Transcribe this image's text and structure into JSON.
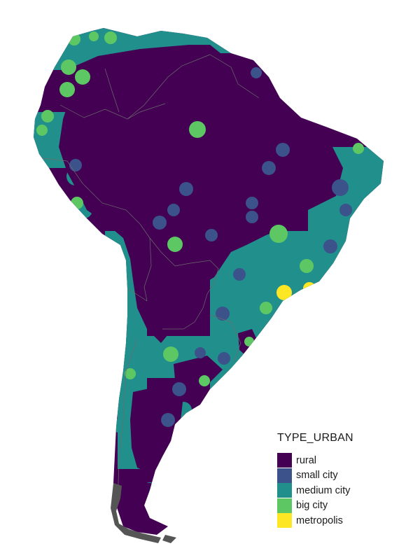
{
  "legend": {
    "title": "TYPE_URBAN",
    "items": [
      {
        "label": "rural",
        "color": "#440154"
      },
      {
        "label": "small city",
        "color": "#3B528B"
      },
      {
        "label": "medium city",
        "color": "#21908C"
      },
      {
        "label": "big city",
        "color": "#5DC863"
      },
      {
        "label": "metropolis",
        "color": "#FDE725"
      }
    ]
  },
  "colors": {
    "background": "#ffffff",
    "rural": "#440154",
    "small_city": "#3B528B",
    "medium_city": "#21908C",
    "big_city": "#5DC863",
    "metropolis": "#FDE725",
    "borders": "#6b6b6b",
    "islands": "#555555"
  }
}
